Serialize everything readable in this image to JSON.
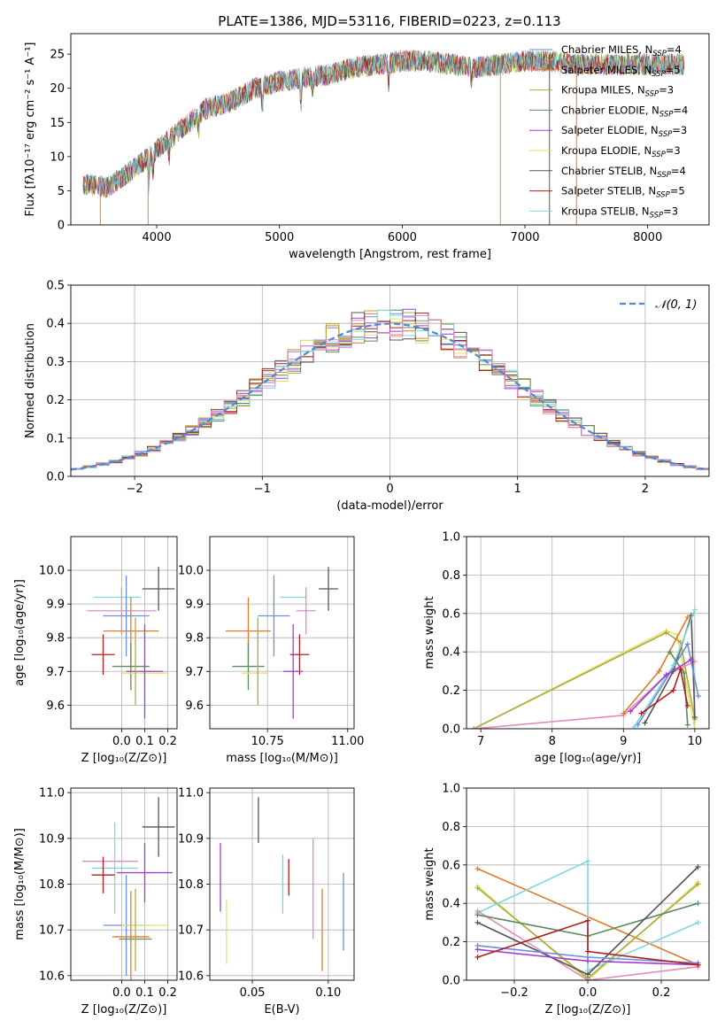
{
  "figure": {
    "title": "PLATE=1386, MJD=53116, FIBERID=0223, z=0.113"
  },
  "colors": {
    "chabrier_miles": "#6a8fdc",
    "salpeter_miles": "#e07b2a",
    "kroupa_miles": "#b3a73f",
    "chabrier_elodie": "#5c8a5c",
    "salpeter_elodie": "#a33ccc",
    "kroupa_elodie": "#d9e86a",
    "chabrier_stelib": "#555555",
    "salpeter_stelib": "#b01e1e",
    "kroupa_stelib": "#7fd6dc",
    "pink": "#e08bc0",
    "normal": "#4f86d6"
  },
  "chart_data": [
    {
      "id": "spectrum",
      "type": "line",
      "xlabel": "wavelength [Angstrom, rest frame]",
      "ylabel": "Flux [fλ10⁻¹⁷ erg cm⁻² s⁻¹ A⁻¹]",
      "xlim": [
        3300,
        8500
      ],
      "ylim": [
        0,
        28
      ],
      "xticks": [
        4000,
        5000,
        6000,
        7000,
        8000
      ],
      "yticks": [
        0,
        5,
        10,
        15,
        20,
        25
      ],
      "grid": false,
      "legend_position": "right",
      "x": [
        3400,
        3600,
        3800,
        4000,
        4200,
        4400,
        4600,
        4800,
        5000,
        5200,
        5400,
        5600,
        5800,
        6000,
        6200,
        6400,
        6600,
        6800,
        7000,
        7200,
        7400,
        7600,
        7800,
        8000,
        8200
      ],
      "y": [
        6,
        5.5,
        8,
        11,
        14,
        17,
        18,
        20,
        21,
        21.5,
        22,
        23,
        23.5,
        24,
        24,
        23.5,
        23,
        23.5,
        24,
        24,
        23.5,
        23.5,
        23.5,
        23.5,
        23.5
      ],
      "series": [
        {
          "name": "Chabrier MILES, N",
          "sub": "SSP",
          "suffix": "=4",
          "color_key": "chabrier_miles"
        },
        {
          "name": "Salpeter MILES, N",
          "sub": "SSP",
          "suffix": "=5",
          "color_key": "salpeter_miles"
        },
        {
          "name": "Kroupa MILES, N",
          "sub": "SSP",
          "suffix": "=3",
          "color_key": "kroupa_miles"
        },
        {
          "name": "Chabrier ELODIE, N",
          "sub": "SSP",
          "suffix": "=4",
          "color_key": "chabrier_elodie"
        },
        {
          "name": "Salpeter ELODIE, N",
          "sub": "SSP",
          "suffix": "=3",
          "color_key": "salpeter_elodie"
        },
        {
          "name": "Kroupa ELODIE, N",
          "sub": "SSP",
          "suffix": "=3",
          "color_key": "kroupa_elodie"
        },
        {
          "name": "Chabrier STELIB, N",
          "sub": "SSP",
          "suffix": "=4",
          "color_key": "chabrier_stelib"
        },
        {
          "name": "Salpeter STELIB, N",
          "sub": "SSP",
          "suffix": "=5",
          "color_key": "salpeter_stelib"
        },
        {
          "name": "Kroupa STELIB, N",
          "sub": "SSP",
          "suffix": "=3",
          "color_key": "kroupa_stelib"
        }
      ]
    },
    {
      "id": "residuals",
      "type": "bar",
      "xlabel": "(data-model)/error",
      "ylabel": "Normed distribution",
      "xlim": [
        -2.5,
        2.5
      ],
      "ylim": [
        0,
        0.5
      ],
      "xticks": [
        -2,
        -1,
        0,
        1,
        2
      ],
      "xticklabels": [
        "−2",
        "−1",
        "0",
        "1",
        "2"
      ],
      "yticks": [
        0,
        0.1,
        0.2,
        0.3,
        0.4,
        0.5
      ],
      "yticklabels": [
        "0.0",
        "0.1",
        "0.2",
        "0.3",
        "0.4",
        "0.5"
      ],
      "grid": true,
      "legend_position": "top-right",
      "bin_width": 0.1,
      "gaussian_label": "𝒩(0, 1)"
    },
    {
      "id": "age_vs_Z",
      "type": "scatter",
      "xlabel": "Z [log₁₀(Z/Z⊙)]",
      "ylabel": "age  [log₁₀(age/yr)]",
      "xlim": [
        -0.22,
        0.24
      ],
      "ylim": [
        9.53,
        10.1
      ],
      "xticks": [
        0,
        0.1,
        0.2
      ],
      "xticklabels": [
        "0.0",
        "0.1",
        "0.2"
      ],
      "yticks": [
        9.6,
        9.7,
        9.8,
        9.9,
        10.0
      ],
      "yticklabels": [
        "9.6",
        "9.7",
        "9.8",
        "9.9",
        "10.0"
      ],
      "grid": true,
      "points": [
        {
          "x": 0.16,
          "y": 9.945,
          "xerr": 0.07,
          "yerr": 0.065,
          "color_key": "chabrier_stelib"
        },
        {
          "x": -0.02,
          "y": 9.92,
          "xerr": 0.1,
          "yerr": 0.0,
          "color_key": "kroupa_stelib"
        },
        {
          "x": 0.0,
          "y": 9.88,
          "xerr": 0.15,
          "yerr": 0.07,
          "color_key": "pink"
        },
        {
          "x": 0.02,
          "y": 9.865,
          "xerr": 0.1,
          "yerr": 0.12,
          "color_key": "chabrier_miles"
        },
        {
          "x": 0.04,
          "y": 9.82,
          "xerr": 0.12,
          "yerr": 0.1,
          "color_key": "salpeter_miles"
        },
        {
          "x": -0.08,
          "y": 9.75,
          "xerr": 0.05,
          "yerr": 0.06,
          "color_key": "salpeter_stelib"
        },
        {
          "x": 0.04,
          "y": 9.715,
          "xerr": 0.08,
          "yerr": 0.07,
          "color_key": "chabrier_elodie"
        },
        {
          "x": 0.1,
          "y": 9.695,
          "xerr": 0.1,
          "yerr": 0.0,
          "color_key": "kroupa_elodie"
        },
        {
          "x": 0.1,
          "y": 9.7,
          "xerr": 0.08,
          "yerr": 0.14,
          "color_key": "salpeter_elodie"
        },
        {
          "x": 0.06,
          "y": 9.73,
          "xerr": 0.0,
          "yerr": 0.13,
          "color_key": "kroupa_miles"
        }
      ]
    },
    {
      "id": "age_vs_mass",
      "type": "scatter",
      "xlabel": "mass [log₁₀(M/M⊙)]",
      "ylabel": "",
      "xlim": [
        10.57,
        11.02
      ],
      "ylim": [
        9.53,
        10.1
      ],
      "xticks": [
        10.75,
        11.0
      ],
      "xticklabels": [
        "10.75",
        "11.00"
      ],
      "yticks": [
        9.6,
        9.7,
        9.8,
        9.9,
        10.0
      ],
      "yticklabels": [
        "9.6",
        "9.7",
        "9.8",
        "9.9",
        "10.0"
      ],
      "grid": true,
      "points": [
        {
          "x": 10.94,
          "y": 9.945,
          "xerr": 0.03,
          "yerr": 0.065,
          "color_key": "chabrier_stelib"
        },
        {
          "x": 10.83,
          "y": 9.92,
          "xerr": 0.04,
          "yerr": 0.0,
          "color_key": "kroupa_stelib"
        },
        {
          "x": 10.87,
          "y": 9.88,
          "xerr": 0.03,
          "yerr": 0.07,
          "color_key": "pink"
        },
        {
          "x": 10.77,
          "y": 9.865,
          "xerr": 0.05,
          "yerr": 0.12,
          "color_key": "chabrier_miles"
        },
        {
          "x": 10.69,
          "y": 9.82,
          "xerr": 0.07,
          "yerr": 0.1,
          "color_key": "salpeter_miles"
        },
        {
          "x": 10.85,
          "y": 9.75,
          "xerr": 0.03,
          "yerr": 0.06,
          "color_key": "salpeter_stelib"
        },
        {
          "x": 10.69,
          "y": 9.715,
          "xerr": 0.05,
          "yerr": 0.07,
          "color_key": "chabrier_elodie"
        },
        {
          "x": 10.71,
          "y": 9.695,
          "xerr": 0.04,
          "yerr": 0.0,
          "color_key": "kroupa_elodie"
        },
        {
          "x": 10.83,
          "y": 9.7,
          "xerr": 0.03,
          "yerr": 0.14,
          "color_key": "salpeter_elodie"
        },
        {
          "x": 10.72,
          "y": 9.73,
          "xerr": 0.0,
          "yerr": 0.13,
          "color_key": "kroupa_miles"
        }
      ]
    },
    {
      "id": "weight_vs_age",
      "type": "line",
      "xlabel": "age  [log₁₀(age/yr)]",
      "ylabel": "mass weight",
      "xlim": [
        6.8,
        10.2
      ],
      "ylim": [
        0,
        1
      ],
      "xticks": [
        7,
        8,
        9,
        10
      ],
      "yticks": [
        0,
        0.2,
        0.4,
        0.6,
        0.8,
        1.0
      ],
      "yticklabels": [
        "0.0",
        "0.2",
        "0.4",
        "0.6",
        "0.8",
        "1.0"
      ],
      "grid": true,
      "series": [
        {
          "color_key": "kroupa_elodie",
          "x": [
            6.9,
            9.6,
            9.75,
            10.0
          ],
          "y": [
            0.0,
            0.51,
            0.49,
            0.0
          ]
        },
        {
          "color_key": "kroupa_miles",
          "x": [
            6.9,
            9.6,
            9.8,
            10.0
          ],
          "y": [
            0.0,
            0.5,
            0.45,
            0.05
          ]
        },
        {
          "color_key": "pink",
          "x": [
            6.9,
            9.0,
            9.6,
            10.0
          ],
          "y": [
            0.0,
            0.07,
            0.28,
            0.35
          ]
        },
        {
          "color_key": "salpeter_miles",
          "x": [
            9.0,
            9.5,
            9.9
          ],
          "y": [
            0.08,
            0.3,
            0.58
          ]
        },
        {
          "color_key": "chabrier_stelib",
          "x": [
            9.3,
            9.7,
            9.95,
            10.0
          ],
          "y": [
            0.03,
            0.3,
            0.59,
            0.06
          ]
        },
        {
          "color_key": "chabrier_miles",
          "x": [
            9.2,
            9.9,
            10.05
          ],
          "y": [
            0.02,
            0.44,
            0.17
          ]
        },
        {
          "color_key": "kroupa_stelib",
          "x": [
            9.15,
            9.7,
            10.0
          ],
          "y": [
            0.01,
            0.33,
            0.62
          ]
        },
        {
          "color_key": "chabrier_elodie",
          "x": [
            9.65,
            9.85,
            9.9
          ],
          "y": [
            0.4,
            0.29,
            0.02
          ]
        },
        {
          "color_key": "salpeter_elodie",
          "x": [
            9.1,
            9.6,
            9.95
          ],
          "y": [
            0.09,
            0.28,
            0.36
          ]
        },
        {
          "color_key": "salpeter_stelib",
          "x": [
            9.25,
            9.7,
            9.8,
            9.9
          ],
          "y": [
            0.08,
            0.2,
            0.31,
            0.12
          ]
        }
      ]
    },
    {
      "id": "mass_vs_Z",
      "type": "scatter",
      "xlabel": "Z [log₁₀(Z/Z⊙)]",
      "ylabel": "mass [log₁₀(M/M⊙)]",
      "xlim": [
        -0.22,
        0.24
      ],
      "ylim": [
        10.59,
        11.01
      ],
      "xticks": [
        0,
        0.1,
        0.2
      ],
      "xticklabels": [
        "0.0",
        "0.1",
        "0.2"
      ],
      "yticks": [
        10.6,
        10.7,
        10.8,
        10.9,
        11.0
      ],
      "yticklabels": [
        "10.6",
        "10.7",
        "10.8",
        "10.9",
        "11.0"
      ],
      "grid": true,
      "points": [
        {
          "x": 0.16,
          "y": 10.925,
          "xerr": 0.07,
          "yerr": 0.065,
          "color_key": "chabrier_stelib"
        },
        {
          "x": -0.05,
          "y": 10.85,
          "xerr": 0.12,
          "yerr": 0.0,
          "color_key": "pink"
        },
        {
          "x": -0.03,
          "y": 10.835,
          "xerr": 0.1,
          "yerr": 0.1,
          "color_key": "kroupa_stelib"
        },
        {
          "x": 0.1,
          "y": 10.825,
          "xerr": 0.12,
          "yerr": 0.065,
          "color_key": "salpeter_elodie"
        },
        {
          "x": -0.08,
          "y": 10.82,
          "xerr": 0.05,
          "yerr": 0.04,
          "color_key": "salpeter_stelib"
        },
        {
          "x": 0.02,
          "y": 10.71,
          "xerr": 0.1,
          "yerr": 0.11,
          "color_key": "chabrier_miles"
        },
        {
          "x": 0.1,
          "y": 10.71,
          "xerr": 0.1,
          "yerr": 0.0,
          "color_key": "kroupa_elodie"
        },
        {
          "x": 0.04,
          "y": 10.685,
          "xerr": 0.08,
          "yerr": 0.1,
          "color_key": "salpeter_miles"
        },
        {
          "x": 0.06,
          "y": 10.68,
          "xerr": 0.07,
          "yerr": 0.0,
          "color_key": "chabrier_elodie"
        },
        {
          "x": 0.06,
          "y": 10.7,
          "xerr": 0.0,
          "yerr": 0.09,
          "color_key": "kroupa_miles"
        }
      ]
    },
    {
      "id": "mass_vs_ebv",
      "type": "scatter",
      "xlabel": "E(B-V)",
      "ylabel": "",
      "xlim": [
        0.022,
        0.117
      ],
      "ylim": [
        10.59,
        11.01
      ],
      "xticks": [
        0.05,
        0.1
      ],
      "xticklabels": [
        "0.05",
        "0.10"
      ],
      "yticks": [
        10.6,
        10.7,
        10.8,
        10.9,
        11.0
      ],
      "yticklabels": [
        "10.6",
        "10.7",
        "10.8",
        "10.9",
        "11.0"
      ],
      "grid": true,
      "points": [
        {
          "x": 0.054,
          "y": 10.94,
          "xerr": 0.0,
          "yerr": 0.05,
          "color_key": "chabrier_stelib"
        },
        {
          "x": 0.029,
          "y": 10.815,
          "xerr": 0.0,
          "yerr": 0.075,
          "color_key": "salpeter_elodie"
        },
        {
          "x": 0.033,
          "y": 10.695,
          "xerr": 0.0,
          "yerr": 0.07,
          "color_key": "kroupa_elodie"
        },
        {
          "x": 0.07,
          "y": 10.8,
          "xerr": 0.0,
          "yerr": 0.065,
          "color_key": "kroupa_stelib"
        },
        {
          "x": 0.074,
          "y": 10.815,
          "xerr": 0.0,
          "yerr": 0.04,
          "color_key": "salpeter_stelib"
        },
        {
          "x": 0.09,
          "y": 10.79,
          "xerr": 0.0,
          "yerr": 0.11,
          "color_key": "pink"
        },
        {
          "x": 0.096,
          "y": 10.7,
          "xerr": 0.0,
          "yerr": 0.09,
          "color_key": "salpeter_miles"
        },
        {
          "x": 0.11,
          "y": 10.74,
          "xerr": 0.0,
          "yerr": 0.085,
          "color_key": "chabrier_miles"
        }
      ]
    },
    {
      "id": "weight_vs_Z",
      "type": "line",
      "xlabel": "Z [log₁₀(Z/Z⊙)]",
      "ylabel": "mass weight",
      "xlim": [
        -0.33,
        0.33
      ],
      "ylim": [
        0,
        1
      ],
      "xticks": [
        -0.2,
        0,
        0.2
      ],
      "xticklabels": [
        "−0.2",
        "0.0",
        "0.2"
      ],
      "yticks": [
        0,
        0.2,
        0.4,
        0.6,
        0.8,
        1.0
      ],
      "yticklabels": [
        "0.0",
        "0.2",
        "0.4",
        "0.6",
        "0.8",
        "1.0"
      ],
      "grid": true,
      "series": [
        {
          "color_key": "salpeter_miles",
          "x": [
            -0.3,
            0.3
          ],
          "y": [
            0.58,
            0.08
          ]
        },
        {
          "color_key": "kroupa_elodie",
          "x": [
            -0.3,
            0.0,
            0.3
          ],
          "y": [
            0.49,
            0.0,
            0.51
          ]
        },
        {
          "color_key": "kroupa_miles",
          "x": [
            -0.3,
            0.0,
            0.3
          ],
          "y": [
            0.48,
            0.01,
            0.5
          ]
        },
        {
          "color_key": "kroupa_stelib",
          "x": [
            -0.3,
            0.0,
            0.0,
            0.3
          ],
          "y": [
            0.35,
            0.62,
            0.05,
            0.3
          ]
        },
        {
          "color_key": "pink",
          "x": [
            -0.3,
            0.0,
            0.3
          ],
          "y": [
            0.36,
            0.0,
            0.07
          ]
        },
        {
          "color_key": "chabrier_elodie",
          "x": [
            -0.3,
            0.0,
            0.3
          ],
          "y": [
            0.34,
            0.23,
            0.4
          ]
        },
        {
          "color_key": "chabrier_stelib",
          "x": [
            -0.3,
            0.0,
            0.3
          ],
          "y": [
            0.3,
            0.03,
            0.59
          ]
        },
        {
          "color_key": "chabrier_miles",
          "x": [
            -0.3,
            0.0,
            0.3
          ],
          "y": [
            0.18,
            0.12,
            0.09
          ]
        },
        {
          "color_key": "salpeter_elodie",
          "x": [
            -0.3,
            0.0,
            0.3
          ],
          "y": [
            0.16,
            0.1,
            0.08
          ]
        },
        {
          "color_key": "salpeter_stelib",
          "x": [
            -0.3,
            0.0,
            0.0,
            0.3
          ],
          "y": [
            0.12,
            0.31,
            0.15,
            0.08
          ]
        }
      ]
    }
  ]
}
